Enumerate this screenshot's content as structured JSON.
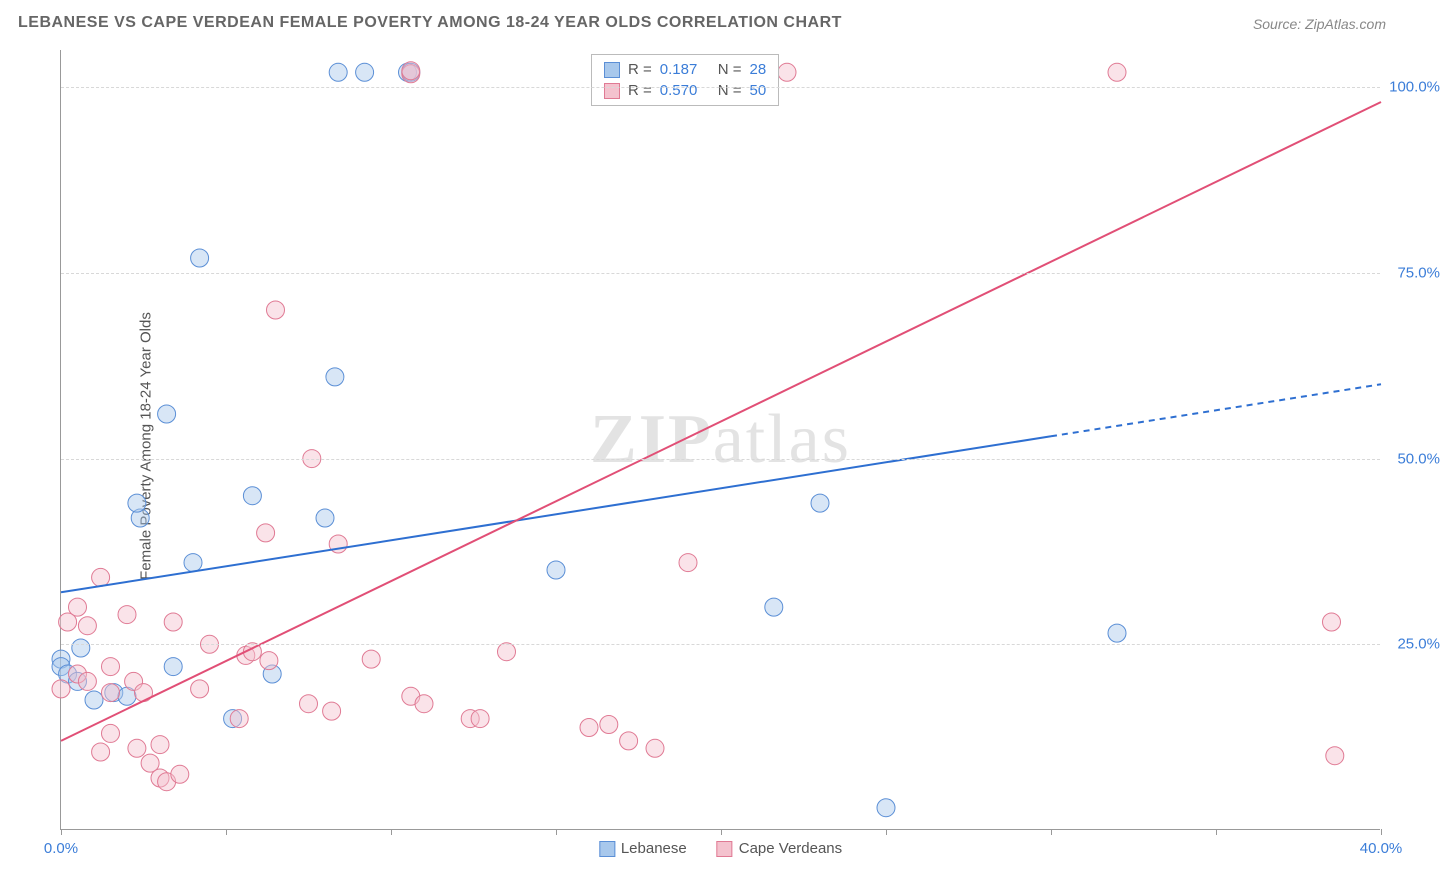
{
  "title": "LEBANESE VS CAPE VERDEAN FEMALE POVERTY AMONG 18-24 YEAR OLDS CORRELATION CHART",
  "source": "Source: ZipAtlas.com",
  "watermark": "ZIPatlas",
  "ylabel": "Female Poverty Among 18-24 Year Olds",
  "chart": {
    "type": "scatter",
    "xlim": [
      0,
      40
    ],
    "ylim": [
      0,
      105
    ],
    "xtick_positions": [
      0,
      5,
      10,
      15,
      20,
      25,
      30,
      35,
      40
    ],
    "xtick_labels_shown": {
      "0": "0.0%",
      "40": "40.0%"
    },
    "ytick_positions": [
      25,
      50,
      75,
      100
    ],
    "ytick_labels": [
      "25.0%",
      "50.0%",
      "75.0%",
      "100.0%"
    ],
    "grid_color": "#d8d8d8",
    "background_color": "#ffffff",
    "axis_color": "#999999",
    "tick_label_color_x": "#3b7dd8",
    "tick_label_color_y": "#3b7dd8",
    "point_radius": 9,
    "point_opacity": 0.45,
    "series": [
      {
        "name": "Lebanese",
        "color_fill": "#a8c8ec",
        "color_stroke": "#5b8fd6",
        "R": "0.187",
        "N": "28",
        "trend": {
          "x1": 0,
          "y1": 32,
          "x2_solid": 30,
          "y2_solid": 53,
          "x2_dash": 40,
          "y2_dash": 60,
          "stroke": "#2e6fd1",
          "width": 2
        },
        "points": [
          [
            0.0,
            23.0
          ],
          [
            0.0,
            22.0
          ],
          [
            0.2,
            21.0
          ],
          [
            0.5,
            20.0
          ],
          [
            0.6,
            24.5
          ],
          [
            1.0,
            17.5
          ],
          [
            1.6,
            18.5
          ],
          [
            2.0,
            18.0
          ],
          [
            2.4,
            42.0
          ],
          [
            2.3,
            44.0
          ],
          [
            3.2,
            56.0
          ],
          [
            3.4,
            22.0
          ],
          [
            4.0,
            36.0
          ],
          [
            4.2,
            77.0
          ],
          [
            5.2,
            15.0
          ],
          [
            5.8,
            45.0
          ],
          [
            6.4,
            21.0
          ],
          [
            8.0,
            42.0
          ],
          [
            8.3,
            61.0
          ],
          [
            8.4,
            102.0
          ],
          [
            9.2,
            102.0
          ],
          [
            10.5,
            102.0
          ],
          [
            10.6,
            102.0
          ],
          [
            15.0,
            35.0
          ],
          [
            21.6,
            30.0
          ],
          [
            23.0,
            44.0
          ],
          [
            25.0,
            3.0
          ],
          [
            32.0,
            26.5
          ]
        ]
      },
      {
        "name": "Cape Verdeans",
        "color_fill": "#f4c2ce",
        "color_stroke": "#e07a94",
        "R": "0.570",
        "N": "50",
        "trend": {
          "x1": 0,
          "y1": 12,
          "x2_solid": 40,
          "y2_solid": 98,
          "x2_dash": 40,
          "y2_dash": 98,
          "stroke": "#e14f76",
          "width": 2
        },
        "points": [
          [
            0.0,
            19.0
          ],
          [
            0.2,
            28.0
          ],
          [
            0.5,
            30.0
          ],
          [
            0.5,
            21.0
          ],
          [
            0.8,
            27.5
          ],
          [
            0.8,
            20.0
          ],
          [
            1.2,
            34.0
          ],
          [
            1.2,
            10.5
          ],
          [
            1.5,
            22.0
          ],
          [
            1.5,
            18.5
          ],
          [
            1.5,
            13.0
          ],
          [
            2.0,
            29.0
          ],
          [
            2.2,
            20.0
          ],
          [
            2.3,
            11.0
          ],
          [
            2.5,
            18.5
          ],
          [
            2.7,
            9.0
          ],
          [
            3.0,
            11.5
          ],
          [
            3.0,
            7.0
          ],
          [
            3.2,
            6.5
          ],
          [
            3.4,
            28.0
          ],
          [
            3.6,
            7.5
          ],
          [
            4.2,
            19.0
          ],
          [
            4.5,
            25.0
          ],
          [
            5.4,
            15.0
          ],
          [
            5.6,
            23.5
          ],
          [
            5.8,
            24.0
          ],
          [
            6.2,
            40.0
          ],
          [
            6.3,
            22.8
          ],
          [
            6.5,
            70.0
          ],
          [
            7.5,
            17.0
          ],
          [
            7.6,
            50.0
          ],
          [
            8.2,
            16.0
          ],
          [
            8.4,
            38.5
          ],
          [
            9.4,
            23.0
          ],
          [
            10.6,
            18.0
          ],
          [
            10.6,
            101.8
          ],
          [
            10.6,
            102.2
          ],
          [
            11.0,
            17.0
          ],
          [
            12.4,
            15.0
          ],
          [
            12.7,
            15.0
          ],
          [
            13.5,
            24.0
          ],
          [
            16.0,
            13.8
          ],
          [
            16.6,
            14.2
          ],
          [
            17.2,
            12.0
          ],
          [
            18.0,
            11.0
          ],
          [
            19.0,
            36.0
          ],
          [
            22.0,
            102.0
          ],
          [
            32.0,
            102.0
          ],
          [
            38.6,
            10.0
          ],
          [
            38.5,
            28.0
          ]
        ]
      }
    ]
  },
  "stats_box": {
    "rows": [
      {
        "swatch_fill": "#a8c8ec",
        "swatch_stroke": "#5b8fd6",
        "r_label": "R =",
        "r_val": "0.187",
        "n_label": "N =",
        "n_val": "28",
        "val_color": "#3b7dd8"
      },
      {
        "swatch_fill": "#f4c2ce",
        "swatch_stroke": "#e07a94",
        "r_label": "R =",
        "r_val": "0.570",
        "n_label": "N =",
        "n_val": "50",
        "val_color": "#3b7dd8"
      }
    ]
  },
  "legend": [
    {
      "swatch_fill": "#a8c8ec",
      "swatch_stroke": "#5b8fd6",
      "label": "Lebanese"
    },
    {
      "swatch_fill": "#f4c2ce",
      "swatch_stroke": "#e07a94",
      "label": "Cape Verdeans"
    }
  ]
}
